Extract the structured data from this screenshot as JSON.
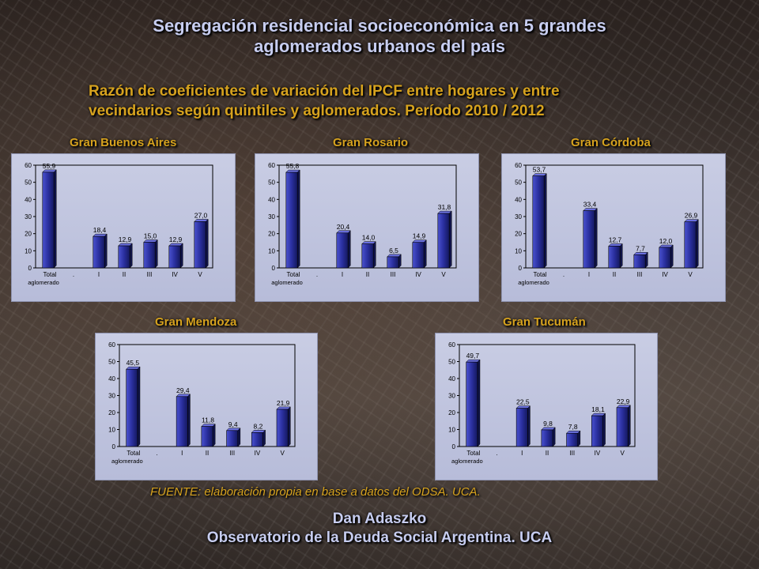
{
  "title_line1": "Segregación residencial socioeconómica en 5 grandes",
  "title_line2": "aglomerados urbanos del país",
  "subtitle_line1": "Razón de coeficientes de variación del IPCF entre hogares y entre",
  "subtitle_line2": "vecindarios según quintiles y aglomerados. Período 2010 / 2012",
  "source": "FUENTE: elaboración propia en base a datos del ODSA. UCA.",
  "author_name": "Dan Adaszko",
  "author_org": "Observatorio de la Deuda Social Argentina. UCA",
  "colors": {
    "bar": "#2a2f9e",
    "bar_light": "#4a52d0",
    "accent": "#d6a21e",
    "title": "#c7cdf0"
  },
  "chart_data": [
    {
      "type": "bar",
      "title": "Gran Buenos Aires",
      "categories": [
        "Total aglomerado",
        ".",
        "I",
        "II",
        "III",
        "IV",
        "V"
      ],
      "values": [
        55.9,
        null,
        18.4,
        12.9,
        15.0,
        12.9,
        27.0
      ],
      "labels": [
        "55,9",
        "",
        "18,4",
        "12,9",
        "15,0",
        "12,9",
        "27,0"
      ],
      "ylim": [
        0,
        60
      ],
      "yticks": [
        0,
        10,
        20,
        30,
        40,
        50,
        60
      ]
    },
    {
      "type": "bar",
      "title": "Gran Rosario",
      "categories": [
        "Total aglomerado",
        ".",
        "I",
        "II",
        "III",
        "IV",
        "V"
      ],
      "values": [
        55.8,
        null,
        20.4,
        14.0,
        6.5,
        14.9,
        31.8
      ],
      "labels": [
        "55,8",
        "",
        "20,4",
        "14,0",
        "6,5",
        "14,9",
        "31,8"
      ],
      "ylim": [
        0,
        60
      ],
      "yticks": [
        0,
        10,
        20,
        30,
        40,
        50,
        60
      ]
    },
    {
      "type": "bar",
      "title": "Gran Córdoba",
      "categories": [
        "Total aglomerado",
        ".",
        "I",
        "II",
        "III",
        "IV",
        "V"
      ],
      "values": [
        53.7,
        null,
        33.4,
        12.7,
        7.7,
        12.0,
        26.9
      ],
      "labels": [
        "53,7",
        "",
        "33,4",
        "12,7",
        "7,7",
        "12,0",
        "26,9"
      ],
      "ylim": [
        0,
        60
      ],
      "yticks": [
        0,
        10,
        20,
        30,
        40,
        50,
        60
      ]
    },
    {
      "type": "bar",
      "title": "Gran Mendoza",
      "categories": [
        "Total aglomerado",
        ".",
        "I",
        "II",
        "III",
        "IV",
        "V"
      ],
      "values": [
        45.5,
        null,
        29.4,
        11.8,
        9.4,
        8.2,
        21.9
      ],
      "labels": [
        "45,5",
        "",
        "29,4",
        "11,8",
        "9,4",
        "8,2",
        "21,9"
      ],
      "ylim": [
        0,
        60
      ],
      "yticks": [
        0,
        10,
        20,
        30,
        40,
        50,
        60
      ]
    },
    {
      "type": "bar",
      "title": "Gran Tucumán",
      "categories": [
        "Total aglomerado",
        ".",
        "I",
        "II",
        "III",
        "IV",
        "V"
      ],
      "values": [
        49.7,
        null,
        22.5,
        9.8,
        7.8,
        18.1,
        22.9
      ],
      "labels": [
        "49,7",
        "",
        "22,5",
        "9,8",
        "7,8",
        "18,1",
        "22,9"
      ],
      "ylim": [
        0,
        60
      ],
      "yticks": [
        0,
        10,
        20,
        30,
        40,
        50,
        60
      ]
    }
  ]
}
